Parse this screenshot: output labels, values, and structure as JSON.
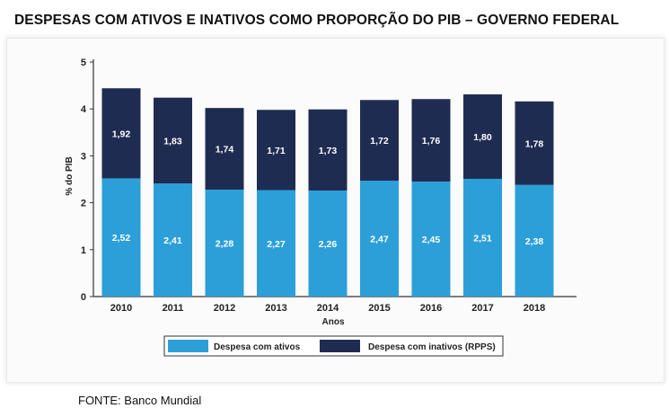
{
  "title": "DESPESAS COM ATIVOS E INATIVOS COMO PROPORÇÃO DO PIB – GOVERNO FEDERAL",
  "source": "FONTE: Banco Mundial",
  "colors": {
    "ativos": "#2c9fd9",
    "inativos": "#1f2c52"
  },
  "chart_data": {
    "type": "bar",
    "stacked": true,
    "categories": [
      "2010",
      "2011",
      "2012",
      "2013",
      "2014",
      "2015",
      "2016",
      "2017",
      "2018"
    ],
    "series": [
      {
        "name": "Despesa com ativos",
        "values": [
          2.52,
          2.41,
          2.28,
          2.27,
          2.26,
          2.47,
          2.45,
          2.51,
          2.38
        ],
        "labels": [
          "2,52",
          "2,41",
          "2,28",
          "2,27",
          "2,26",
          "2,47",
          "2,45",
          "2,51",
          "2,38"
        ]
      },
      {
        "name": "Despesa com inativos (RPPS)",
        "values": [
          1.92,
          1.83,
          1.74,
          1.71,
          1.73,
          1.72,
          1.76,
          1.8,
          1.78
        ],
        "labels": [
          "1,92",
          "1,83",
          "1,74",
          "1,71",
          "1,73",
          "1,72",
          "1,76",
          "1,80",
          "1,78"
        ]
      }
    ],
    "xlabel": "Anos",
    "ylabel": "% do PIB",
    "ylim": [
      0,
      5
    ],
    "yticks": [
      "0",
      "1",
      "2",
      "3",
      "4",
      "5"
    ],
    "legend_position": "bottom",
    "grid": false
  }
}
